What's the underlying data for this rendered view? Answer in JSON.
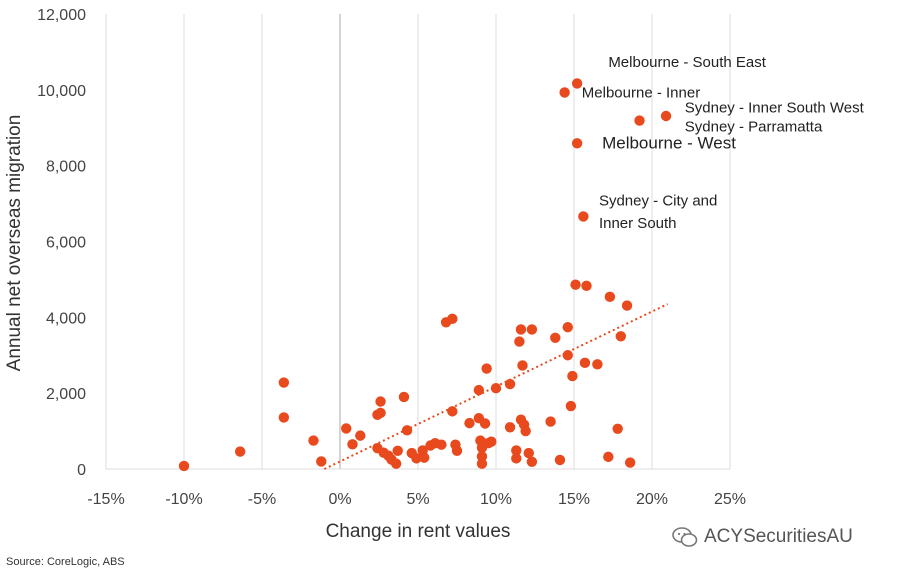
{
  "chart_data": {
    "type": "scatter",
    "xlabel": "Change in rent values",
    "ylabel": "Annual net overseas migration",
    "xlim": [
      -15,
      25
    ],
    "ylim": [
      0,
      12000
    ],
    "x_ticks": [
      "-15%",
      "-10%",
      "-5%",
      "0%",
      "5%",
      "10%",
      "15%",
      "20%",
      "25%"
    ],
    "y_ticks": [
      "0",
      "2,000",
      "4,000",
      "6,000",
      "8,000",
      "10,000",
      "12,000"
    ],
    "grid": "vertical",
    "point_color": "#e8491d",
    "trendline": {
      "style": "dotted",
      "x": [
        -1.0,
        21.0
      ],
      "y": [
        0,
        4350
      ]
    },
    "points": [
      [
        -10,
        80
      ],
      [
        -6.4,
        460
      ],
      [
        -3.6,
        2280
      ],
      [
        -3.6,
        1360
      ],
      [
        -1.7,
        750
      ],
      [
        -1.2,
        200
      ],
      [
        0.4,
        1070
      ],
      [
        0.8,
        650
      ],
      [
        1.3,
        880
      ],
      [
        2.4,
        1430
      ],
      [
        2.6,
        1480
      ],
      [
        2.6,
        1780
      ],
      [
        2.4,
        550
      ],
      [
        2.8,
        430
      ],
      [
        3.1,
        350
      ],
      [
        3.3,
        250
      ],
      [
        3.6,
        140
      ],
      [
        3.7,
        480
      ],
      [
        4.1,
        1900
      ],
      [
        4.3,
        1020
      ],
      [
        4.6,
        420
      ],
      [
        4.9,
        280
      ],
      [
        5.3,
        490
      ],
      [
        5.4,
        300
      ],
      [
        5.8,
        620
      ],
      [
        6.1,
        680
      ],
      [
        6.5,
        640
      ],
      [
        6.8,
        3870
      ],
      [
        7.2,
        3960
      ],
      [
        7.2,
        1520
      ],
      [
        7.4,
        640
      ],
      [
        7.5,
        480
      ],
      [
        8.3,
        1210
      ],
      [
        8.9,
        1340
      ],
      [
        8.9,
        2080
      ],
      [
        9.0,
        750
      ],
      [
        9.1,
        560
      ],
      [
        9.1,
        330
      ],
      [
        9.1,
        140
      ],
      [
        9.3,
        1200
      ],
      [
        9.4,
        2650
      ],
      [
        9.7,
        720
      ],
      [
        9.5,
        680
      ],
      [
        10.0,
        2130
      ],
      [
        10.9,
        2240
      ],
      [
        10.9,
        1100
      ],
      [
        11.3,
        490
      ],
      [
        11.6,
        1300
      ],
      [
        11.6,
        3680
      ],
      [
        11.5,
        3360
      ],
      [
        11.7,
        2730
      ],
      [
        11.8,
        1170
      ],
      [
        11.9,
        1000
      ],
      [
        12.1,
        420
      ],
      [
        12.3,
        190
      ],
      [
        11.3,
        280
      ],
      [
        12.3,
        3680
      ],
      [
        13.5,
        1250
      ],
      [
        13.8,
        3460
      ],
      [
        14.1,
        240
      ],
      [
        14.6,
        3740
      ],
      [
        14.6,
        3000
      ],
      [
        14.8,
        1660
      ],
      [
        14.9,
        2450
      ],
      [
        15.1,
        4860
      ],
      [
        15.8,
        4830
      ],
      [
        15.7,
        2800
      ],
      [
        16.5,
        2760
      ],
      [
        17.3,
        4540
      ],
      [
        17.2,
        320
      ],
      [
        17.8,
        1060
      ],
      [
        18.0,
        3500
      ],
      [
        18.4,
        4310
      ],
      [
        18.6,
        170
      ],
      [
        14.4,
        9930
      ],
      [
        15.2,
        10170
      ],
      [
        19.2,
        9190
      ],
      [
        20.9,
        9310
      ],
      [
        15.2,
        8590
      ],
      [
        15.6,
        6660
      ]
    ],
    "annotations": [
      {
        "text": "Melbourne - South East",
        "x": 17.2,
        "y": 10600,
        "size": "normal"
      },
      {
        "text": "Melbourne - Inner",
        "x": 15.5,
        "y": 9800,
        "size": "normal"
      },
      {
        "text": "Sydney - Inner South West",
        "x": 22.1,
        "y": 9400,
        "size": "normal"
      },
      {
        "text": "Sydney - Parramatta",
        "x": 22.1,
        "y": 8900,
        "size": "normal"
      },
      {
        "text": "Melbourne - West",
        "x": 16.8,
        "y": 8450,
        "size": "large"
      },
      {
        "text": "Sydney - City and",
        "x": 16.6,
        "y": 6950,
        "size": "normal"
      },
      {
        "text": "Inner South",
        "x": 16.6,
        "y": 6350,
        "size": "normal"
      }
    ]
  },
  "source": "Source: CoreLogic, ABS",
  "watermark": "ACYSecuritiesAU"
}
